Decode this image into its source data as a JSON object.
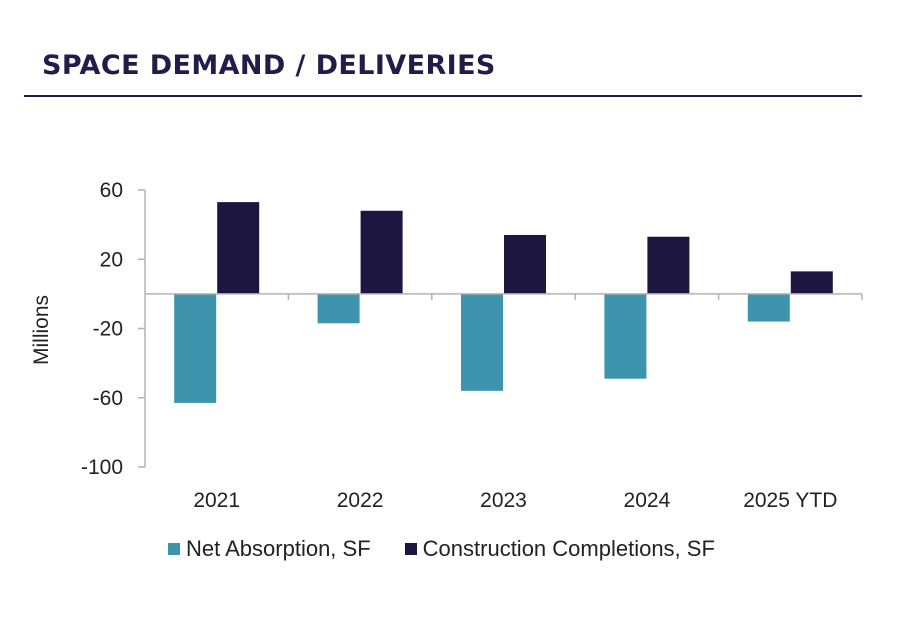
{
  "header": {
    "title": "SPACE DEMAND / DELIVERIES"
  },
  "colors": {
    "title": "#211d4a",
    "net_absorption": "#3f94ad",
    "construction": "#1c1640",
    "axis": "#b3b3b3"
  },
  "chart_data": {
    "type": "bar",
    "title": "SPACE DEMAND / DELIVERIES",
    "xlabel": "",
    "ylabel": "Millions",
    "ylim": [
      -100,
      60
    ],
    "yticks": [
      60,
      20,
      -20,
      -60,
      -100
    ],
    "ytick_labels": [
      "60",
      "20",
      "-20",
      "-60",
      "-100"
    ],
    "grid": false,
    "legend_position": "bottom",
    "categories": [
      "2021",
      "2022",
      "2023",
      "2024",
      "2025 YTD"
    ],
    "series": [
      {
        "name": "Net Absorption, SF",
        "values": [
          -63,
          -17,
          -56,
          -49,
          -16
        ]
      },
      {
        "name": "Construction Completions, SF",
        "values": [
          53,
          48,
          34,
          33,
          13
        ]
      }
    ]
  }
}
